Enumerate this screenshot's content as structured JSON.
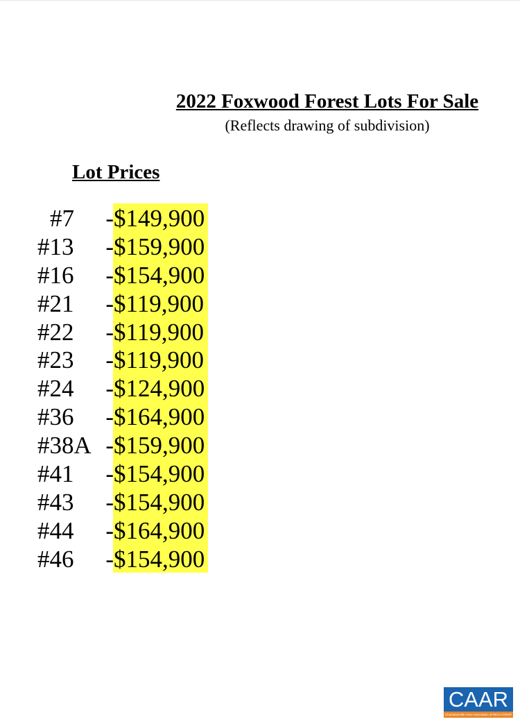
{
  "title": "2022 Foxwood Forest Lots For Sale",
  "subtitle": "(Reflects drawing of subdivision)",
  "heading": "Lot Prices",
  "highlight_color": "#ffff4d",
  "lots": [
    {
      "lot": "#7",
      "sep": "-",
      "price": "$149,900"
    },
    {
      "lot": "#13",
      "sep": "-",
      "price": "$159,900"
    },
    {
      "lot": "#16",
      "sep": "-",
      "price": "$154,900"
    },
    {
      "lot": "#21",
      "sep": "-",
      "price": "$119,900"
    },
    {
      "lot": "#22",
      "sep": "-",
      "price": "$119,900"
    },
    {
      "lot": "#23",
      "sep": "-",
      "price": "$119,900"
    },
    {
      "lot": "#24",
      "sep": "-",
      "price": "$124,900"
    },
    {
      "lot": "#36",
      "sep": "-",
      "price": "$164,900"
    },
    {
      "lot": "#38A",
      "sep": "-",
      "price": "$159,900"
    },
    {
      "lot": "#41",
      "sep": "-",
      "price": "$154,900"
    },
    {
      "lot": "#43",
      "sep": "-",
      "price": "$154,900"
    },
    {
      "lot": "#44",
      "sep": "-",
      "price": "$164,900"
    },
    {
      "lot": "#46",
      "sep": "-",
      "price": "$154,900"
    }
  ],
  "logo": {
    "text": "CAAR",
    "tagline": "Charlottesville Area Association of REALTORS®",
    "colors": {
      "blue": "#1a64b0",
      "orange": "#e8862a"
    }
  }
}
